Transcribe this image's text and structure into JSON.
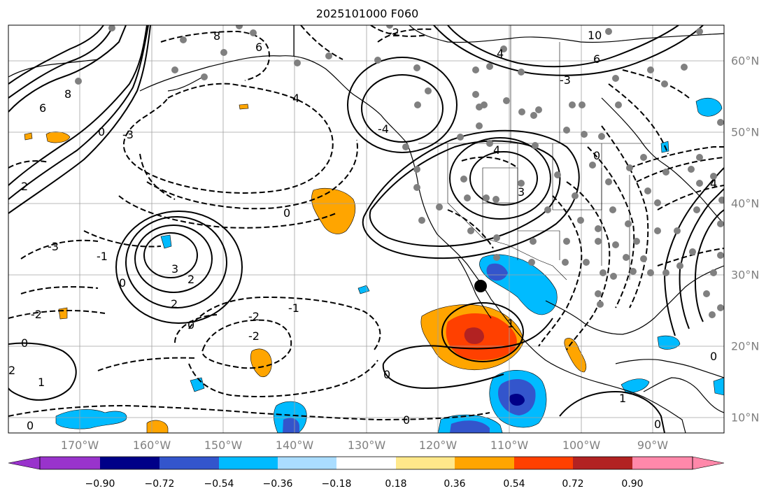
{
  "title": "2025101000 F060",
  "map": {
    "region": "Eastern North Pacific / North America",
    "lon_labels": [
      "170°W",
      "160°W",
      "150°W",
      "140°W",
      "130°W",
      "120°W",
      "110°W",
      "100°W",
      "90°W"
    ],
    "lat_labels": [
      "60°N",
      "50°N",
      "40°N",
      "30°N",
      "20°N",
      "10°N"
    ],
    "contour_labels": [
      "8",
      "6",
      "4",
      "2",
      "0",
      "-2",
      "-3",
      "-4",
      "3",
      "10",
      "-1",
      "1"
    ]
  },
  "colorbar": {
    "ticks": [
      "−0.90",
      "−0.72",
      "−0.54",
      "−0.36",
      "−0.18",
      "0.18",
      "0.36",
      "0.54",
      "0.72",
      "0.90"
    ],
    "colors": [
      "#9933cc",
      "#000088",
      "#3355cc",
      "#00bbff",
      "#aaddff",
      "#ffffff",
      "#ffe88a",
      "#ffa500",
      "#ff4000",
      "#b22222",
      "#ff88aa"
    ]
  },
  "colors": {
    "orange": "#ffa500",
    "red_orange": "#ff4000",
    "dark_red": "#b22222",
    "blue": "#00bbff",
    "light_blue": "#aaddff",
    "mid_blue": "#3355cc",
    "navy": "#000088",
    "station_dot": "#808080"
  }
}
